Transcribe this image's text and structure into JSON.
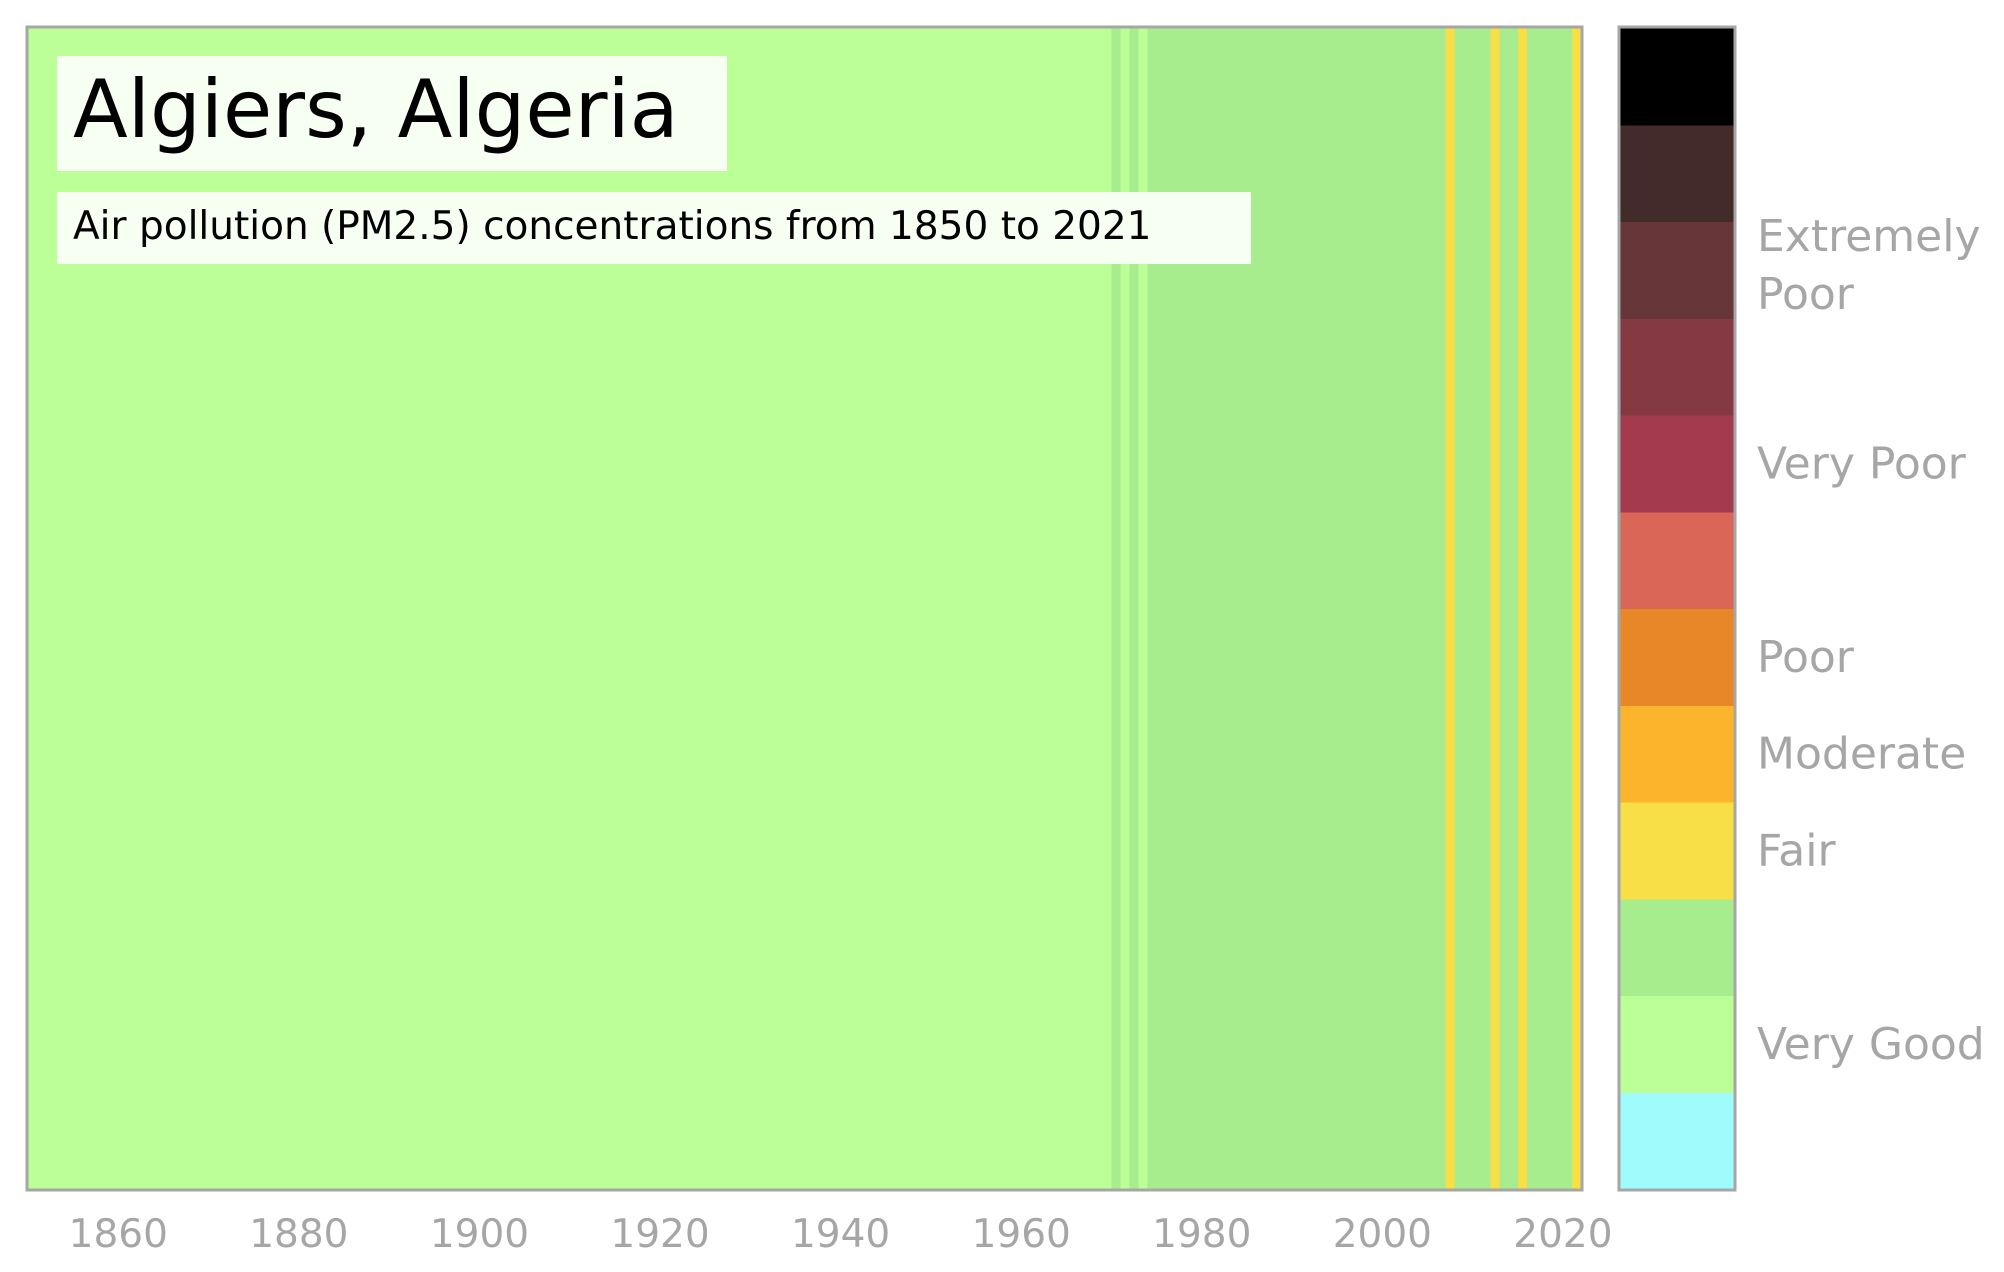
{
  "chart_data": {
    "type": "heatmap",
    "title": "Algiers, Algeria",
    "subtitle": "Air pollution (PM2.5) concentrations from 1850 to 2021",
    "xlabel": "",
    "ylabel": "",
    "x_range": [
      1850,
      2022
    ],
    "x_ticks": [
      1860,
      1880,
      1900,
      1920,
      1940,
      1960,
      1980,
      2000,
      2020
    ],
    "grid": false,
    "legend": "right colorbar",
    "categories_by_year": [
      {
        "from": 1850,
        "to": 1969,
        "category": "Very Good (upper)"
      },
      {
        "from": 1970,
        "to": 1970,
        "category": "Good"
      },
      {
        "from": 1971,
        "to": 1971,
        "category": "Very Good (upper)"
      },
      {
        "from": 1972,
        "to": 1972,
        "category": "Good"
      },
      {
        "from": 1973,
        "to": 1973,
        "category": "Very Good (upper)"
      },
      {
        "from": 1974,
        "to": 2006,
        "category": "Good"
      },
      {
        "from": 2007,
        "to": 2007,
        "category": "Fair"
      },
      {
        "from": 2008,
        "to": 2011,
        "category": "Good"
      },
      {
        "from": 2012,
        "to": 2012,
        "category": "Fair"
      },
      {
        "from": 2013,
        "to": 2014,
        "category": "Good"
      },
      {
        "from": 2015,
        "to": 2015,
        "category": "Fair"
      },
      {
        "from": 2016,
        "to": 2020,
        "category": "Good"
      },
      {
        "from": 2021,
        "to": 2021,
        "category": "Fair"
      }
    ],
    "palette": {
      "Very Good (upper)": "#bbff96",
      "Good": "#a8ed8d",
      "Fair": "#f8df48"
    },
    "colorbar": {
      "colors": [
        "#a0fcfc",
        "#bbff96",
        "#a8ed8d",
        "#f8df48",
        "#fcb42d",
        "#e78728",
        "#da6658",
        "#a43a4e",
        "#843943",
        "#663639",
        "#432b2c",
        "#000000"
      ],
      "labels": [
        {
          "text": "Very Good",
          "at_band": 1
        },
        {
          "text": "Fair",
          "at_band": 3
        },
        {
          "text": "Moderate",
          "at_band": 4
        },
        {
          "text": "Poor",
          "at_band": 5
        },
        {
          "text": "Very Poor",
          "at_band": 7
        },
        {
          "text": "Extremely Poor",
          "at_band": 9
        }
      ]
    },
    "colors": {
      "axis_text": "#a6a6a6",
      "frame": "#a6a6a6",
      "title_box": "#f7fff2",
      "subtitle_box": "#f7fff2"
    }
  }
}
